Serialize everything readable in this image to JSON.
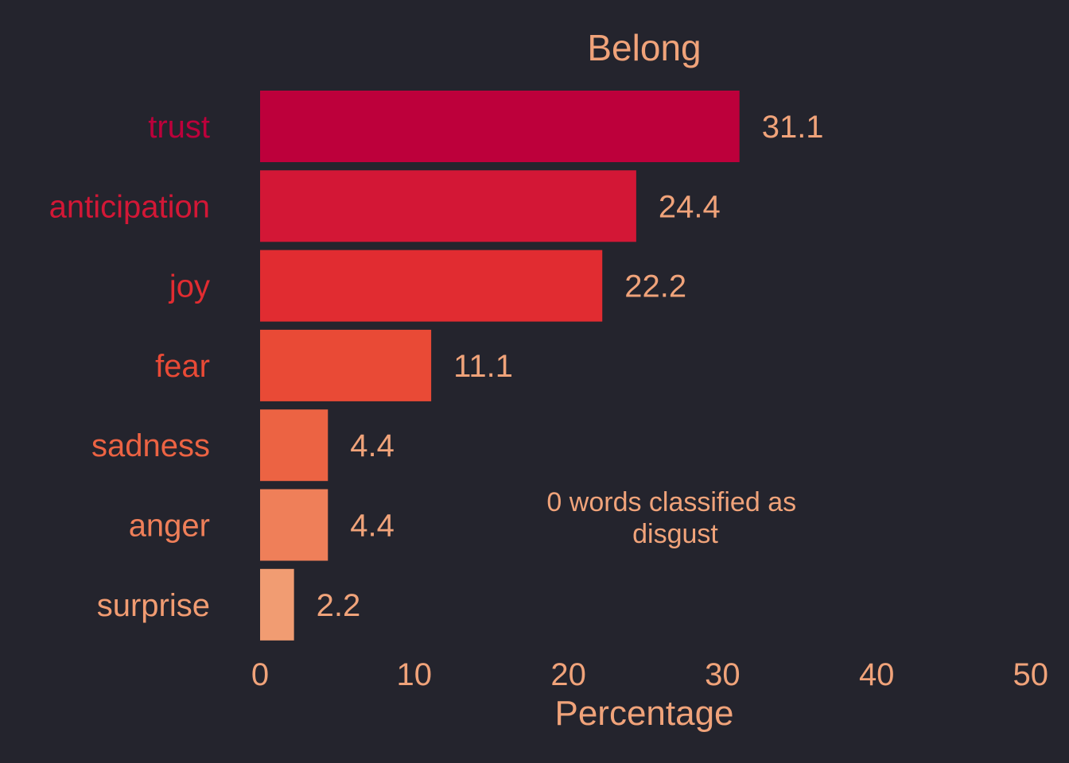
{
  "colors": {
    "background": "#24242d",
    "text": "#f0a37a",
    "bars": [
      "#bd003b",
      "#d31736",
      "#e12c31",
      "#e94a36",
      "#ec6343",
      "#ef7f59",
      "#f19c72"
    ]
  },
  "chart_data": {
    "type": "bar",
    "orientation": "horizontal",
    "title": "Belong",
    "xlabel": "Percentage",
    "ylabel": "",
    "categories": [
      "trust",
      "anticipation",
      "joy",
      "fear",
      "sadness",
      "anger",
      "surprise"
    ],
    "values": [
      31.1,
      24.4,
      22.2,
      11.1,
      4.4,
      4.4,
      2.2
    ],
    "value_labels": [
      "31.1",
      "24.4",
      "22.2",
      "11.1",
      "4.4",
      "4.4",
      "2.2"
    ],
    "xlim": [
      0,
      50
    ],
    "xticks": [
      0,
      10,
      20,
      30,
      40,
      50
    ],
    "xtick_labels": [
      "0",
      "10",
      "20",
      "30",
      "40",
      "50"
    ],
    "grid": false,
    "legend": "none",
    "annotation": {
      "lines": [
        "0 words classified as",
        "disgust"
      ]
    }
  }
}
